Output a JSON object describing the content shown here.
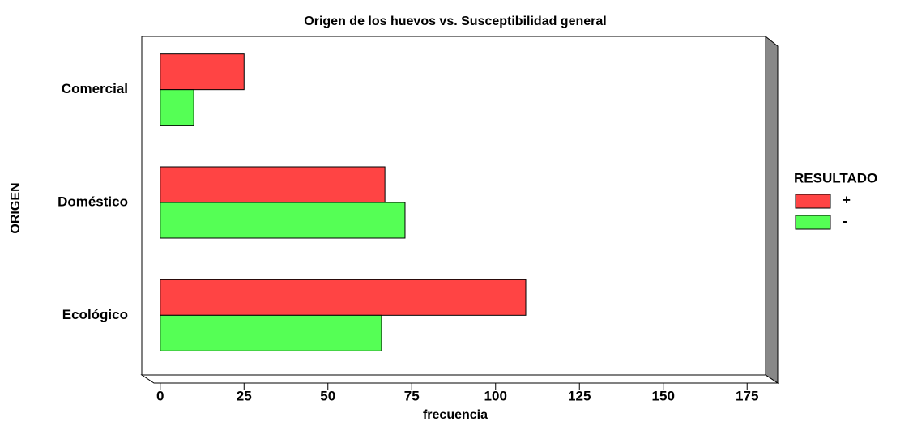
{
  "chart_data": {
    "type": "barh",
    "title": "Origen de los huevos vs. Susceptibilidad general",
    "xlabel": "frecuencia",
    "ylabel": "ORIGEN",
    "categories": [
      "Comercial",
      "Doméstico",
      "Ecológico"
    ],
    "series": [
      {
        "name": "+",
        "color": "#ff4444",
        "values": [
          25,
          67,
          109
        ]
      },
      {
        "name": "-",
        "color": "#55ff55",
        "values": [
          10,
          73,
          66
        ]
      }
    ],
    "legend_title": "RESULTADO",
    "legend": "right",
    "xlim": [
      -5.5,
      180.5
    ],
    "xticks": [
      0,
      25,
      50,
      75,
      100,
      125,
      150,
      175
    ]
  }
}
